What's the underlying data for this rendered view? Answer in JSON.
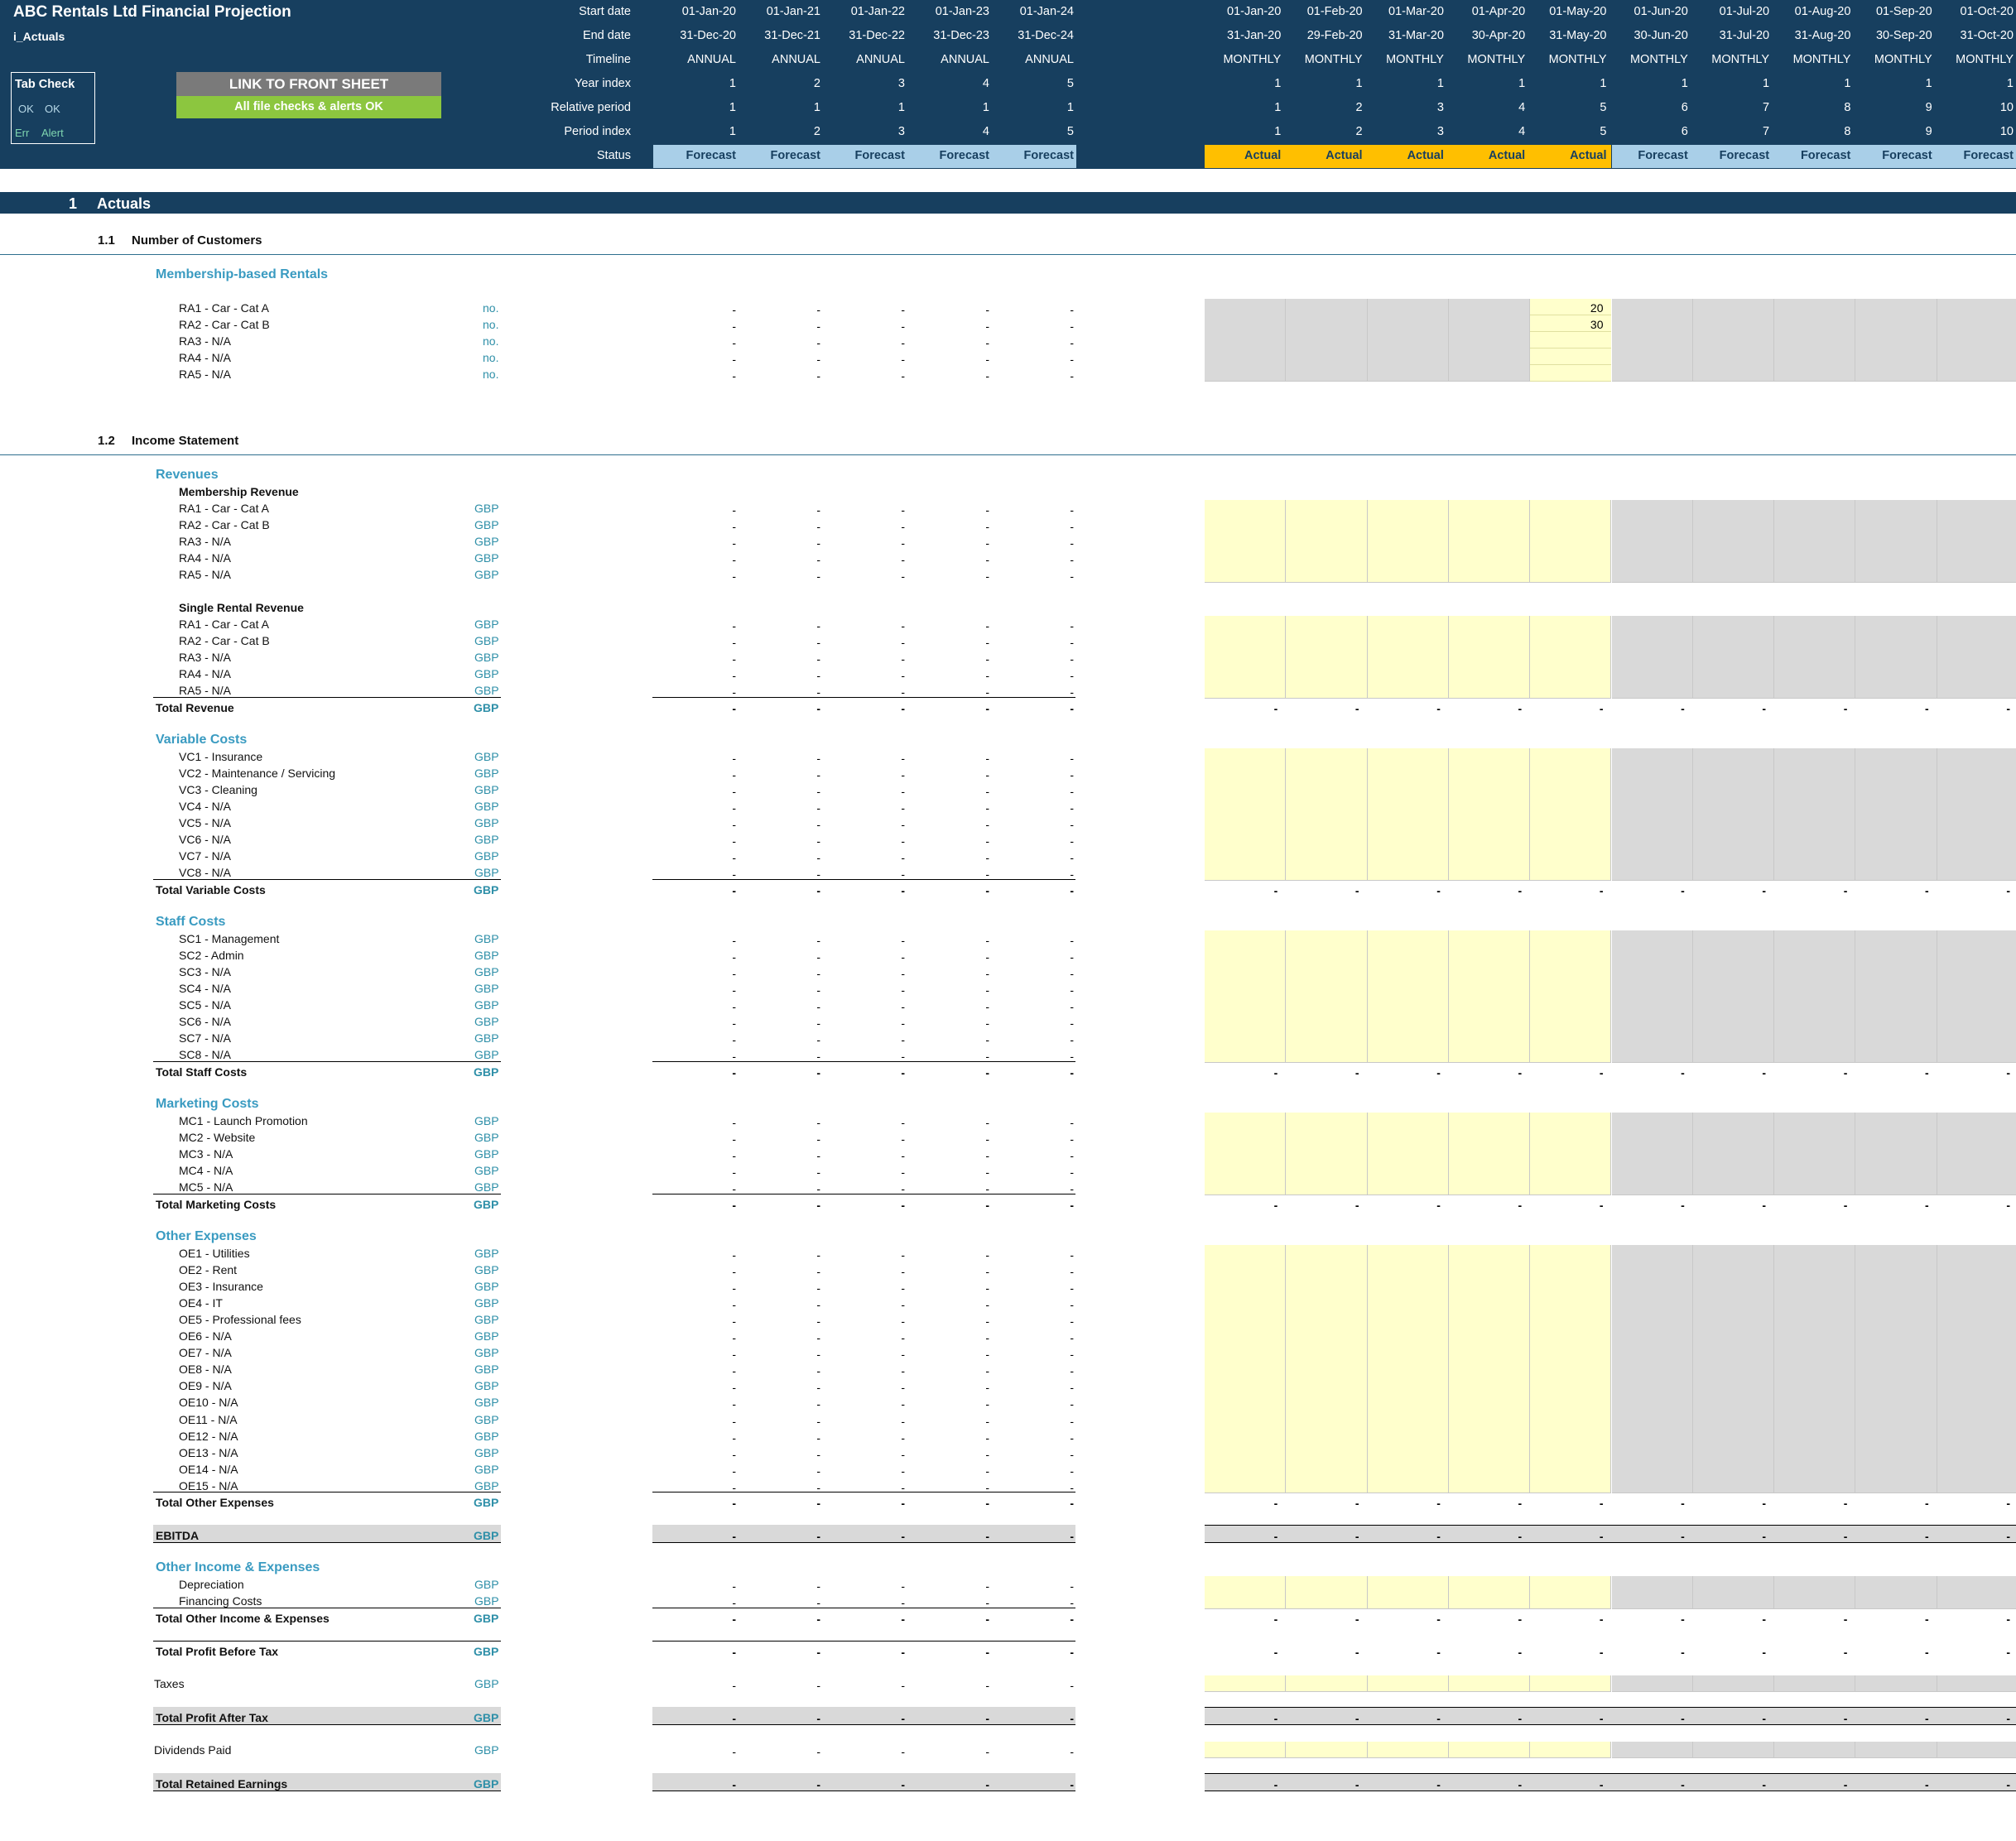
{
  "sheet": {
    "title": "ABC  Rentals Ltd Financial Projection",
    "tab_name": "i_Actuals",
    "link_button": "LINK TO FRONT SHEET",
    "checks_status": "All file checks & alerts OK",
    "tab_check": {
      "label": "Tab Check",
      "ok1": "OK",
      "ok2": "OK",
      "err": "Err",
      "alert": "Alert"
    }
  },
  "header": {
    "row_labels": [
      "Start date",
      "End date",
      "Timeline",
      "Year index",
      "Relative period",
      "Period index",
      "Status"
    ],
    "annual": [
      {
        "start": "01-Jan-20",
        "end": "31-Dec-20",
        "timeline": "ANNUAL",
        "year": "1",
        "rel": "1",
        "pidx": "1",
        "status": "Forecast"
      },
      {
        "start": "01-Jan-21",
        "end": "31-Dec-21",
        "timeline": "ANNUAL",
        "year": "2",
        "rel": "1",
        "pidx": "2",
        "status": "Forecast"
      },
      {
        "start": "01-Jan-22",
        "end": "31-Dec-22",
        "timeline": "ANNUAL",
        "year": "3",
        "rel": "1",
        "pidx": "3",
        "status": "Forecast"
      },
      {
        "start": "01-Jan-23",
        "end": "31-Dec-23",
        "timeline": "ANNUAL",
        "year": "4",
        "rel": "1",
        "pidx": "4",
        "status": "Forecast"
      },
      {
        "start": "01-Jan-24",
        "end": "31-Dec-24",
        "timeline": "ANNUAL",
        "year": "5",
        "rel": "1",
        "pidx": "5",
        "status": "Forecast"
      }
    ],
    "monthly": [
      {
        "start": "01-Jan-20",
        "end": "31-Jan-20",
        "timeline": "MONTHLY",
        "year": "1",
        "rel": "1",
        "pidx": "1",
        "status": "Actual"
      },
      {
        "start": "01-Feb-20",
        "end": "29-Feb-20",
        "timeline": "MONTHLY",
        "year": "1",
        "rel": "2",
        "pidx": "2",
        "status": "Actual"
      },
      {
        "start": "01-Mar-20",
        "end": "31-Mar-20",
        "timeline": "MONTHLY",
        "year": "1",
        "rel": "3",
        "pidx": "3",
        "status": "Actual"
      },
      {
        "start": "01-Apr-20",
        "end": "30-Apr-20",
        "timeline": "MONTHLY",
        "year": "1",
        "rel": "4",
        "pidx": "4",
        "status": "Actual"
      },
      {
        "start": "01-May-20",
        "end": "31-May-20",
        "timeline": "MONTHLY",
        "year": "1",
        "rel": "5",
        "pidx": "5",
        "status": "Actual"
      },
      {
        "start": "01-Jun-20",
        "end": "30-Jun-20",
        "timeline": "MONTHLY",
        "year": "1",
        "rel": "6",
        "pidx": "6",
        "status": "Forecast"
      },
      {
        "start": "01-Jul-20",
        "end": "31-Jul-20",
        "timeline": "MONTHLY",
        "year": "1",
        "rel": "7",
        "pidx": "7",
        "status": "Forecast"
      },
      {
        "start": "01-Aug-20",
        "end": "31-Aug-20",
        "timeline": "MONTHLY",
        "year": "1",
        "rel": "8",
        "pidx": "8",
        "status": "Forecast"
      },
      {
        "start": "01-Sep-20",
        "end": "30-Sep-20",
        "timeline": "MONTHLY",
        "year": "1",
        "rel": "9",
        "pidx": "9",
        "status": "Forecast"
      },
      {
        "start": "01-Oct-20",
        "end": "31-Oct-20",
        "timeline": "MONTHLY",
        "year": "1",
        "rel": "10",
        "pidx": "10",
        "status": "Forecast"
      }
    ]
  },
  "section": {
    "number": "1",
    "title": "Actuals"
  },
  "customers": {
    "number": "1.1",
    "title": "Number of Customers",
    "group": "Membership-based Rentals",
    "unit": "no.",
    "rows": [
      "RA1 - Car - Cat A",
      "RA2 - Car - Cat B",
      "RA3 - N/A",
      "RA4 - N/A",
      "RA5 - N/A"
    ],
    "may_values": [
      "20",
      "30",
      "",
      "",
      ""
    ]
  },
  "income": {
    "number": "1.2",
    "title": "Income Statement",
    "unit": "GBP",
    "dash": "-",
    "revenues": {
      "title": "Revenues",
      "membership_title": "Membership Revenue",
      "membership": [
        "RA1 - Car - Cat A",
        "RA2 - Car - Cat B",
        "RA3 - N/A",
        "RA4 - N/A",
        "RA5 - N/A"
      ],
      "single_title": "Single Rental Revenue",
      "single": [
        "RA1 - Car - Cat A",
        "RA2 - Car - Cat B",
        "RA3 - N/A",
        "RA4 - N/A",
        "RA5 - N/A"
      ],
      "total": "Total Revenue"
    },
    "variable": {
      "title": "Variable Costs",
      "rows": [
        "VC1 - Insurance",
        "VC2 - Maintenance / Servicing",
        "VC3 - Cleaning",
        "VC4 - N/A",
        "VC5 - N/A",
        "VC6 - N/A",
        "VC7 - N/A",
        "VC8 - N/A"
      ],
      "total": "Total Variable Costs"
    },
    "staff": {
      "title": "Staff Costs",
      "rows": [
        "SC1 - Management",
        "SC2 - Admin",
        "SC3 - N/A",
        "SC4 - N/A",
        "SC5 - N/A",
        "SC6 - N/A",
        "SC7 - N/A",
        "SC8 - N/A"
      ],
      "total": "Total Staff Costs"
    },
    "marketing": {
      "title": "Marketing Costs",
      "rows": [
        "MC1 - Launch Promotion",
        "MC2 - Website",
        "MC3 - N/A",
        "MC4 - N/A",
        "MC5 - N/A"
      ],
      "total": "Total Marketing Costs"
    },
    "other": {
      "title": "Other Expenses",
      "rows": [
        "OE1 - Utilities",
        "OE2 - Rent",
        "OE3 - Insurance",
        "OE4 - IT",
        "OE5 - Professional fees",
        "OE6 - N/A",
        "OE7 - N/A",
        "OE8 - N/A",
        "OE9 - N/A",
        "OE10 - N/A",
        "OE11 - N/A",
        "OE12 - N/A",
        "OE13 - N/A",
        "OE14 - N/A",
        "OE15 - N/A"
      ],
      "total": "Total Other Expenses"
    },
    "ebitda": "EBITDA",
    "other_income": {
      "title": "Other Income & Expenses",
      "rows": [
        "Depreciation",
        "Financing Costs"
      ],
      "total": "Total Other Income & Expenses"
    },
    "pbt": "Total Profit Before Tax",
    "taxes": "Taxes",
    "pat": "Total Profit After Tax",
    "dividends": "Dividends Paid",
    "retained": "Total Retained Earnings"
  },
  "colors": {
    "header_band": "#173f5f",
    "forecast_annual": "#a9cfe8",
    "actual": "#ffbf00",
    "input_yellow": "#ffffcc",
    "grey_cell": "#d9d9d9",
    "accent_teal": "#2e8fa8",
    "ok_green": "#8cc63f"
  }
}
